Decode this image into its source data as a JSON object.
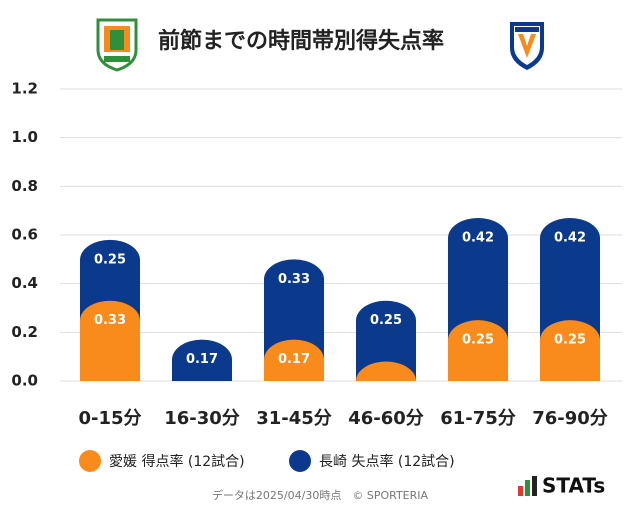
{
  "chart_data": {
    "type": "bar",
    "stacked": true,
    "title": "前節までの時間帯別得失点率",
    "categories": [
      "0-15分",
      "16-30分",
      "31-45分",
      "46-60分",
      "61-75分",
      "76-90分"
    ],
    "series": [
      {
        "name": "愛媛 得点率 (12試合)",
        "color": "#f98a1c",
        "values": [
          0.33,
          0,
          0.17,
          0.08,
          0.25,
          0.25
        ],
        "value_labels": [
          "0.33",
          null,
          "0.17",
          null,
          "0.25",
          "0.25"
        ]
      },
      {
        "name": "長崎 失点率 (12試合)",
        "color": "#0b3a8d",
        "values": [
          0.25,
          0.17,
          0.33,
          0.25,
          0.42,
          0.42
        ]
      }
    ],
    "ylim": [
      0,
      1.2
    ],
    "yticks": [
      {
        "value": 0,
        "label": "0.0"
      },
      0.2,
      0.4,
      0.6,
      0.8,
      {
        "value": 1,
        "label": "1.0"
      },
      1.2
    ],
    "grid": true,
    "legend": "bottom",
    "footnote": "データは2025/04/30時点　© SPORTERIA",
    "brand": "STATs"
  }
}
